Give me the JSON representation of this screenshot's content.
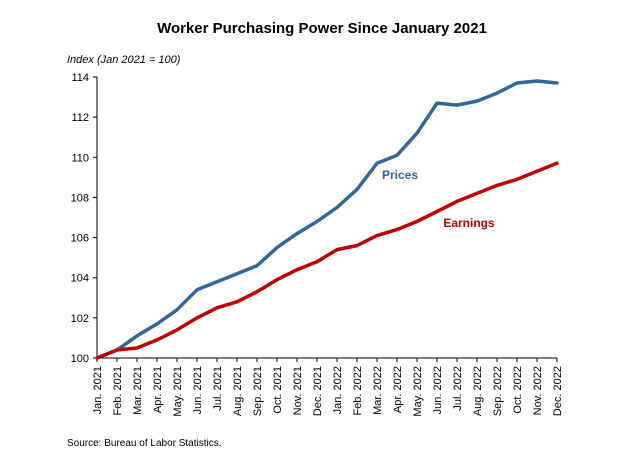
{
  "source": "Source: Bureau of Labor Statistics.",
  "chart_data": {
    "type": "line",
    "title": "Worker Purchasing Power Since January 2021",
    "ylabel": "Index (Jan 2021 = 100)",
    "xlabel": "",
    "ylim": [
      100,
      114
    ],
    "yticks": [
      100,
      102,
      104,
      106,
      108,
      110,
      112,
      114
    ],
    "grid": false,
    "categories": [
      "Jan. 2021",
      "Feb. 2021",
      "Mar. 2021",
      "Apr. 2021",
      "May. 2021",
      "Jun. 2021",
      "Jul. 2021",
      "Aug. 2021",
      "Sep. 2021",
      "Oct. 2021",
      "Nov. 2021",
      "Dec. 2021",
      "Jan. 2022",
      "Feb. 2022",
      "Mar. 2022",
      "Apr. 2022",
      "May. 2022",
      "Jun. 2022",
      "Jul. 2022",
      "Aug. 2022",
      "Sep. 2022",
      "Oct. 2022",
      "Nov. 2022",
      "Dec. 2022"
    ],
    "series": [
      {
        "name": "Prices",
        "color": "#336699",
        "values": [
          100.0,
          100.4,
          101.1,
          101.7,
          102.4,
          103.4,
          103.8,
          104.2,
          104.6,
          105.5,
          106.2,
          106.8,
          107.5,
          108.4,
          109.7,
          110.1,
          111.2,
          112.7,
          112.6,
          112.8,
          113.2,
          113.7,
          113.8,
          113.7
        ]
      },
      {
        "name": "Earnings",
        "color": "#c00000",
        "values": [
          100.0,
          100.4,
          100.5,
          100.9,
          101.4,
          102.0,
          102.5,
          102.8,
          103.3,
          103.9,
          104.4,
          104.8,
          105.4,
          105.6,
          106.1,
          106.4,
          106.8,
          107.3,
          107.8,
          108.2,
          108.6,
          108.9,
          109.3,
          109.7
        ]
      }
    ]
  }
}
